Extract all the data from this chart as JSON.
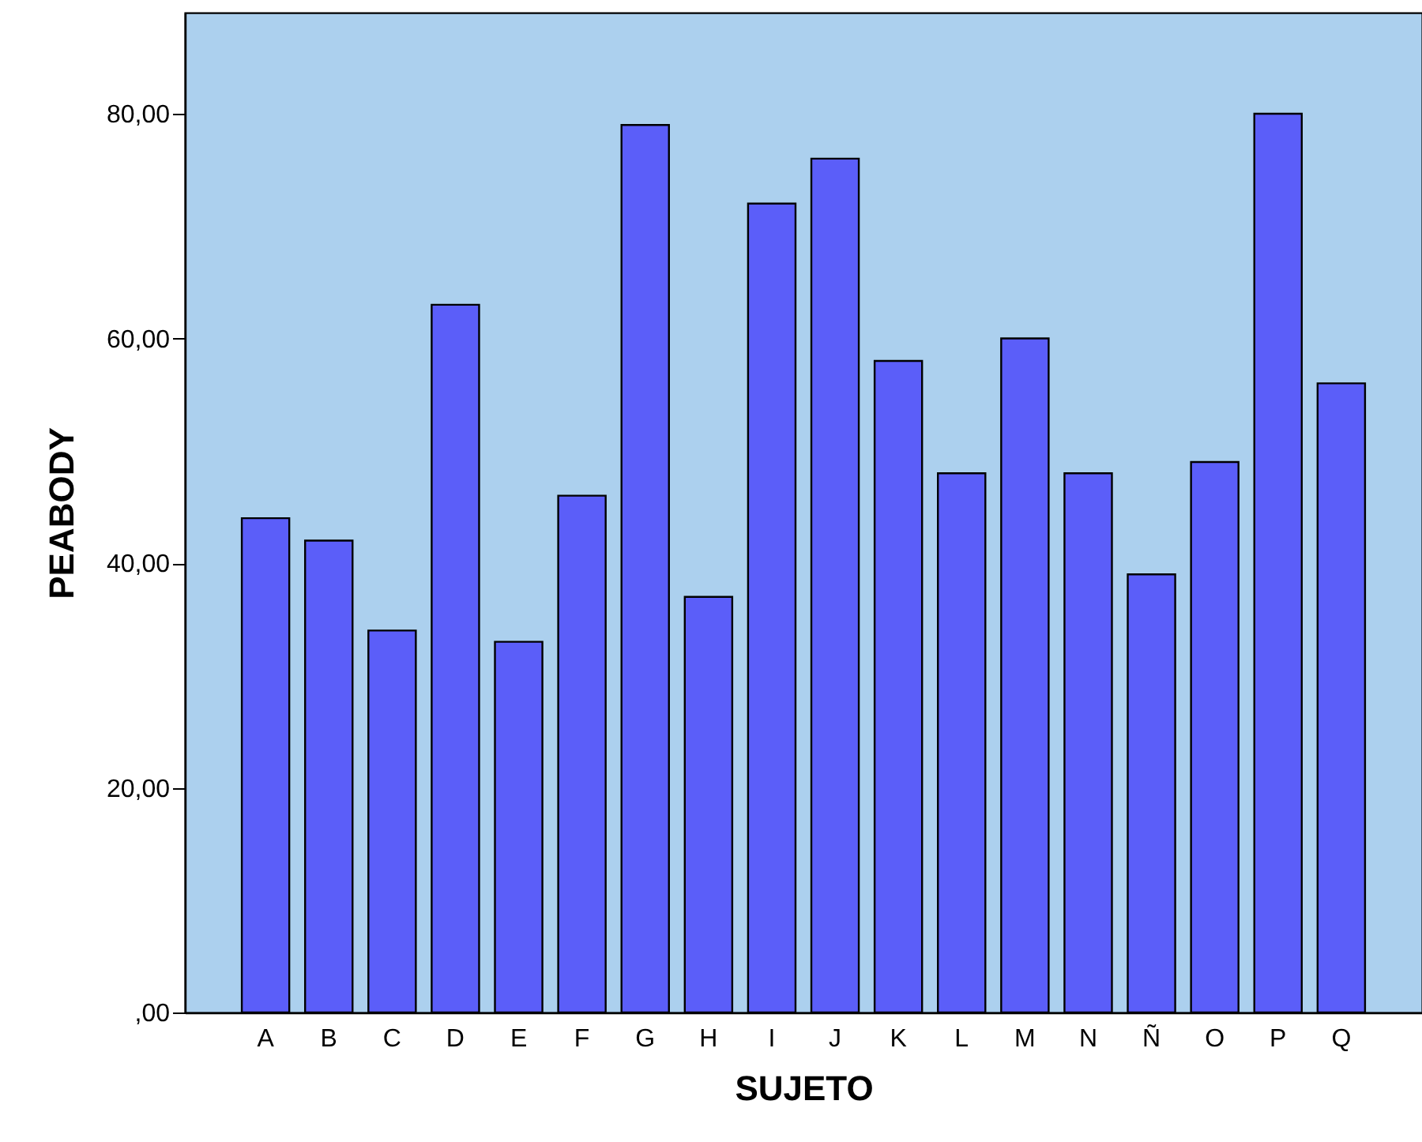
{
  "chart_data": {
    "type": "bar",
    "xlabel": "SUJETO",
    "ylabel": "PEABODY",
    "categories": [
      "A",
      "B",
      "C",
      "D",
      "E",
      "F",
      "G",
      "H",
      "I",
      "J",
      "K",
      "L",
      "M",
      "N",
      "Ñ",
      "O",
      "P",
      "Q"
    ],
    "values": [
      44,
      42,
      34,
      63,
      33,
      46,
      79,
      37,
      72,
      76,
      58,
      48,
      60,
      48,
      39,
      49,
      80,
      56
    ],
    "color": "#5b5ef9",
    "ylim": [
      0,
      89
    ],
    "yticks": [
      {
        "value": 0,
        "label": ",00"
      },
      {
        "value": 20,
        "label": "20,00"
      },
      {
        "value": 40,
        "label": "40,00"
      },
      {
        "value": 60,
        "label": "60,00"
      },
      {
        "value": 80,
        "label": "80,00"
      }
    ],
    "grid": false
  }
}
